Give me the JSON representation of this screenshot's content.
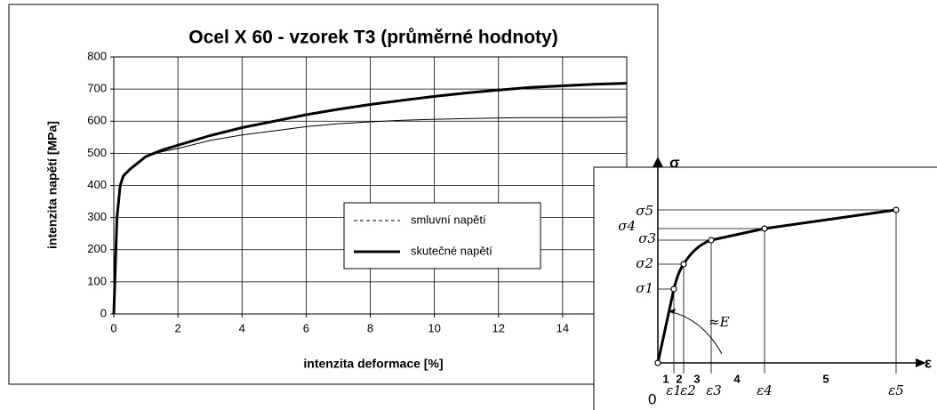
{
  "chart_data": [
    {
      "type": "line",
      "title": "Ocel X 60 - vzorek T3 (průměrné hodnoty)",
      "xlabel": "intenzita deformace [%]",
      "ylabel": "intenzita napětí [MPa]",
      "x": [
        0,
        0.1,
        0.2,
        0.3,
        0.5,
        1,
        1.5,
        2,
        3,
        4,
        5,
        6,
        7,
        8,
        9,
        10,
        11,
        12,
        13,
        14,
        15,
        16
      ],
      "series": [
        {
          "name": "smluvní napětí",
          "color": "#000000",
          "values": [
            0,
            300,
            400,
            430,
            450,
            490,
            505,
            515,
            540,
            557,
            570,
            583,
            592,
            598,
            603,
            606,
            608,
            610,
            611,
            611,
            611,
            612
          ]
        },
        {
          "name": "skutečné napětí",
          "color": "#000000",
          "values": [
            0,
            300,
            400,
            430,
            450,
            490,
            510,
            525,
            555,
            580,
            600,
            620,
            637,
            652,
            665,
            677,
            688,
            697,
            705,
            710,
            715,
            718
          ]
        }
      ],
      "xlim": [
        0,
        16
      ],
      "xticks": [
        0,
        2,
        4,
        6,
        8,
        10,
        12,
        14
      ],
      "ylim": [
        0,
        800
      ],
      "yticks": [
        0,
        100,
        200,
        300,
        400,
        500,
        600,
        700,
        800
      ],
      "grid": true
    }
  ],
  "diagram": {
    "y_axis": "σ",
    "x_axis": "ε",
    "origin": "0",
    "modulus": "≈E",
    "sigma_labels": [
      "σ1",
      "σ2",
      "σ3",
      "σ4",
      "σ5"
    ],
    "eps_labels": [
      "ε1",
      "ε2",
      "ε3",
      "ε4",
      "ε5"
    ],
    "regions": [
      "1",
      "2",
      "3",
      "4",
      "5"
    ]
  }
}
